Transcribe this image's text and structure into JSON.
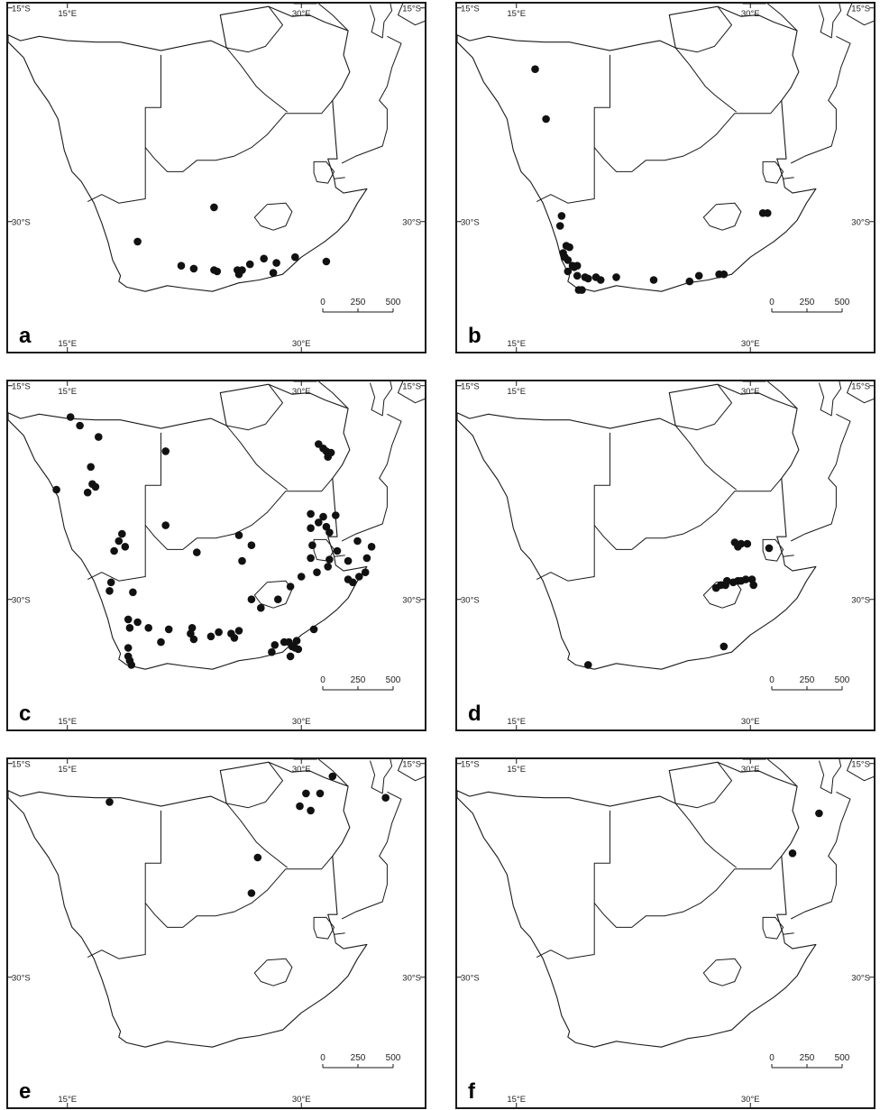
{
  "figure": {
    "panels": [
      {
        "id": "a",
        "letter": "a",
        "records": [
          [
            19.5,
            -31.4
          ],
          [
            24.4,
            -29.0
          ],
          [
            22.3,
            -33.1
          ],
          [
            23.1,
            -33.3
          ],
          [
            24.6,
            -33.5
          ],
          [
            25.9,
            -33.4
          ],
          [
            26.7,
            -33.0
          ],
          [
            27.6,
            -32.6
          ],
          [
            28.4,
            -32.9
          ],
          [
            29.6,
            -32.5
          ],
          [
            31.6,
            -32.8
          ],
          [
            26.0,
            -33.7
          ],
          [
            26.2,
            -33.4
          ],
          [
            28.2,
            -33.6
          ],
          [
            24.4,
            -33.4
          ]
        ]
      },
      {
        "id": "b",
        "letter": "b",
        "records": [
          [
            16.2,
            -19.3
          ],
          [
            16.9,
            -22.8
          ],
          [
            17.9,
            -29.6
          ],
          [
            17.8,
            -30.3
          ],
          [
            18.2,
            -31.7
          ],
          [
            18.4,
            -31.8
          ],
          [
            18.0,
            -32.2
          ],
          [
            18.1,
            -32.5
          ],
          [
            18.3,
            -32.7
          ],
          [
            18.6,
            -33.1
          ],
          [
            18.9,
            -33.8
          ],
          [
            19.4,
            -33.9
          ],
          [
            19.6,
            -34.0
          ],
          [
            20.1,
            -33.9
          ],
          [
            20.4,
            -34.1
          ],
          [
            21.4,
            -33.9
          ],
          [
            23.8,
            -34.1
          ],
          [
            26.1,
            -34.2
          ],
          [
            26.7,
            -33.8
          ],
          [
            28.0,
            -33.7
          ],
          [
            28.3,
            -33.7
          ],
          [
            30.8,
            -29.4
          ],
          [
            31.1,
            -29.4
          ],
          [
            19.0,
            -34.8
          ],
          [
            19.2,
            -34.8
          ],
          [
            18.7,
            -33.2
          ],
          [
            18.3,
            -33.5
          ],
          [
            18.9,
            -33.1
          ]
        ]
      },
      {
        "id": "c",
        "letter": "c",
        "records": [
          [
            15.2,
            -17.2
          ],
          [
            15.8,
            -17.8
          ],
          [
            17.0,
            -18.6
          ],
          [
            21.3,
            -19.6
          ],
          [
            16.5,
            -20.7
          ],
          [
            16.6,
            -21.9
          ],
          [
            16.8,
            -22.1
          ],
          [
            14.3,
            -22.3
          ],
          [
            16.3,
            -22.5
          ],
          [
            31.1,
            -19.1
          ],
          [
            31.4,
            -19.4
          ],
          [
            31.6,
            -19.6
          ],
          [
            31.9,
            -19.7
          ],
          [
            31.7,
            -20.0
          ],
          [
            21.3,
            -24.8
          ],
          [
            18.5,
            -25.4
          ],
          [
            18.3,
            -25.9
          ],
          [
            18.7,
            -26.3
          ],
          [
            18.0,
            -26.6
          ],
          [
            23.3,
            -26.7
          ],
          [
            26.0,
            -25.5
          ],
          [
            26.8,
            -26.2
          ],
          [
            30.6,
            -24.0
          ],
          [
            31.4,
            -24.2
          ],
          [
            32.2,
            -24.1
          ],
          [
            30.6,
            -25.0
          ],
          [
            30.7,
            -26.2
          ],
          [
            31.1,
            -24.6
          ],
          [
            31.8,
            -25.3
          ],
          [
            31.6,
            -24.9
          ],
          [
            32.3,
            -26.6
          ],
          [
            33.6,
            -25.9
          ],
          [
            34.5,
            -26.3
          ],
          [
            34.2,
            -27.1
          ],
          [
            33.0,
            -27.3
          ],
          [
            31.8,
            -27.2
          ],
          [
            30.6,
            -27.1
          ],
          [
            31.7,
            -27.7
          ],
          [
            31.0,
            -28.1
          ],
          [
            30.0,
            -28.4
          ],
          [
            29.3,
            -29.1
          ],
          [
            28.5,
            -30.0
          ],
          [
            27.4,
            -30.6
          ],
          [
            26.8,
            -30.0
          ],
          [
            26.2,
            -27.3
          ],
          [
            33.0,
            -28.6
          ],
          [
            33.3,
            -28.8
          ],
          [
            34.1,
            -28.1
          ],
          [
            33.7,
            -28.4
          ],
          [
            17.8,
            -28.8
          ],
          [
            17.7,
            -29.4
          ],
          [
            19.2,
            -29.5
          ],
          [
            19.5,
            -31.6
          ],
          [
            18.9,
            -31.4
          ],
          [
            19.0,
            -32.0
          ],
          [
            20.2,
            -32.0
          ],
          [
            21.5,
            -32.1
          ],
          [
            22.9,
            -32.4
          ],
          [
            23.0,
            -32.0
          ],
          [
            24.2,
            -32.6
          ],
          [
            24.7,
            -32.3
          ],
          [
            25.5,
            -32.4
          ],
          [
            26.0,
            -32.2
          ],
          [
            23.1,
            -32.8
          ],
          [
            21.0,
            -33.0
          ],
          [
            25.7,
            -32.7
          ],
          [
            18.9,
            -33.4
          ],
          [
            18.9,
            -34.0
          ],
          [
            19.0,
            -34.3
          ],
          [
            19.1,
            -34.6
          ],
          [
            28.3,
            -33.2
          ],
          [
            29.2,
            -33.0
          ],
          [
            29.4,
            -33.3
          ],
          [
            29.7,
            -32.9
          ],
          [
            28.1,
            -33.7
          ],
          [
            29.6,
            -33.4
          ],
          [
            29.8,
            -33.5
          ],
          [
            30.8,
            -32.1
          ],
          [
            28.9,
            -33.0
          ],
          [
            29.3,
            -34.0
          ]
        ]
      },
      {
        "id": "d",
        "letter": "d",
        "records": [
          [
            29.0,
            -26.0
          ],
          [
            29.4,
            -26.1
          ],
          [
            29.2,
            -26.3
          ],
          [
            29.8,
            -26.1
          ],
          [
            31.2,
            -26.4
          ],
          [
            27.8,
            -29.2
          ],
          [
            28.1,
            -29.0
          ],
          [
            28.4,
            -29.0
          ],
          [
            28.5,
            -28.7
          ],
          [
            28.9,
            -28.8
          ],
          [
            29.2,
            -28.7
          ],
          [
            29.7,
            -28.6
          ],
          [
            30.1,
            -28.6
          ],
          [
            30.2,
            -29.0
          ],
          [
            29.4,
            -28.7
          ],
          [
            28.3,
            -33.3
          ],
          [
            19.6,
            -34.6
          ]
        ]
      },
      {
        "id": "e",
        "letter": "e",
        "records": [
          [
            17.7,
            -17.7
          ],
          [
            30.3,
            -17.1
          ],
          [
            29.9,
            -18.0
          ],
          [
            30.6,
            -18.3
          ],
          [
            31.2,
            -17.1
          ],
          [
            32.0,
            -15.9
          ],
          [
            35.4,
            -17.4
          ],
          [
            27.2,
            -21.6
          ],
          [
            26.8,
            -24.1
          ]
        ]
      },
      {
        "id": "f",
        "letter": "f",
        "records": [
          [
            34.4,
            -18.5
          ],
          [
            32.7,
            -21.3
          ]
        ]
      }
    ],
    "graticule": {
      "lon_top": [
        "15°E",
        "30°E"
      ],
      "lon_bottom": [
        "15°E",
        "30°E"
      ],
      "lat_left": [
        "15°S",
        "30°S"
      ],
      "lat_right": [
        "15°S",
        "30°S"
      ]
    },
    "scale_bar": {
      "labels": [
        "0",
        "250",
        "500"
      ]
    }
  }
}
